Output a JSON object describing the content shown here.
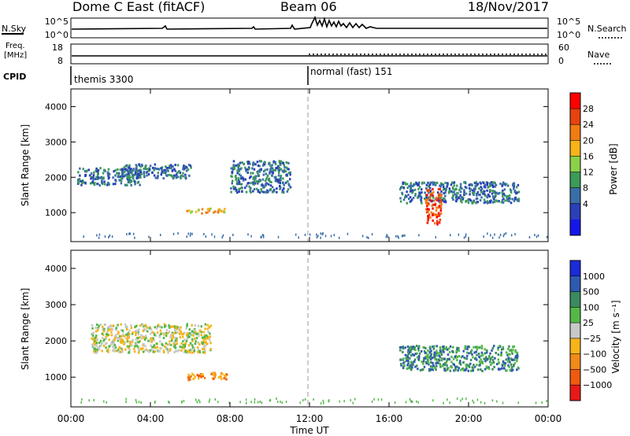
{
  "header": {
    "radar": "Dome C East (fitACF)",
    "beam": "Beam 06",
    "date": "18/Nov/2017"
  },
  "strip": {
    "nsky_label": "N.Sky",
    "nsky_ticks": [
      "10^5",
      "10^0"
    ],
    "nsearch_label": "N.Search",
    "nsearch_ticks": [
      "10^5",
      "10^0"
    ],
    "freq_label": "Freq.",
    "freq_unit": "[MHz]",
    "freq_ticks": [
      "18",
      "8"
    ],
    "nave_label": "Nave",
    "nave_ticks": [
      "60",
      "0"
    ],
    "cpid_label": "CPID",
    "cpid_segments": [
      "themis 3300",
      "normal (fast) 151"
    ]
  },
  "chart_data": [
    {
      "type": "heatmap",
      "name": "power",
      "ylabel": "Slant Range [km]",
      "xlabel": "",
      "xlim": [
        0,
        24
      ],
      "ylim": [
        180,
        4500
      ],
      "yticks": [
        "1000",
        "2000",
        "3000",
        "4000"
      ],
      "colorbar": {
        "label": "Power [dB]",
        "ticks": [
          "28",
          "24",
          "20",
          "16",
          "12",
          "8",
          "4"
        ],
        "colors": [
          "#ff0000",
          "#e8420f",
          "#f07c12",
          "#f5b41a",
          "#8cd14a",
          "#3c9a5a",
          "#3a6ea8",
          "#2a3fb8",
          "#1616e8"
        ]
      },
      "features": [
        {
          "t0": 0.3,
          "t1": 3.5,
          "r0": 1800,
          "r1": 2300,
          "level": 6
        },
        {
          "t0": 2.5,
          "t1": 6.0,
          "r0": 2000,
          "r1": 2400,
          "level": 6
        },
        {
          "t0": 5.8,
          "t1": 7.8,
          "r0": 1000,
          "r1": 1150,
          "level": 3
        },
        {
          "t0": 8.0,
          "t1": 11.0,
          "r0": 1600,
          "r1": 2500,
          "level": 6
        },
        {
          "t0": 16.5,
          "t1": 22.5,
          "r0": 1300,
          "r1": 1900,
          "level": 6
        },
        {
          "t0": 17.8,
          "t1": 18.6,
          "r0": 700,
          "r1": 1700,
          "level": 1
        }
      ]
    },
    {
      "type": "heatmap",
      "name": "velocity",
      "ylabel": "Slant Range [km]",
      "xlabel": "Time UT",
      "xlim": [
        0,
        24
      ],
      "ylim": [
        180,
        4500
      ],
      "yticks": [
        "1000",
        "2000",
        "3000",
        "4000"
      ],
      "xticks": [
        "00:00",
        "04:00",
        "08:00",
        "12:00",
        "16:00",
        "20:00",
        "00:00"
      ],
      "colorbar": {
        "label": "Velocity [m s⁻¹]",
        "ticks": [
          "1000",
          "500",
          "100",
          "25",
          "−25",
          "−100",
          "−500",
          "−1000"
        ],
        "colors": [
          "#1a2bd8",
          "#2e5ab0",
          "#3a8a60",
          "#54b848",
          "#c8c8c8",
          "#f5b41a",
          "#f08a18",
          "#ee5a10",
          "#e81818"
        ]
      },
      "features": [
        {
          "t0": 1.0,
          "t1": 7.0,
          "r0": 1700,
          "r1": 2500,
          "level": 4
        },
        {
          "t0": 5.8,
          "t1": 7.8,
          "r0": 950,
          "r1": 1150,
          "level": 6
        },
        {
          "t0": 16.5,
          "t1": 22.5,
          "r0": 1200,
          "r1": 1900,
          "level": 2
        }
      ]
    }
  ]
}
